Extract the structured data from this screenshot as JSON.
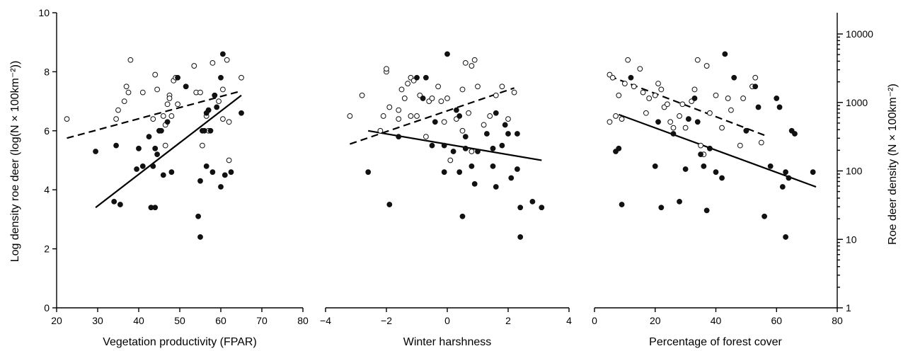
{
  "chart_data": [
    {
      "type": "scatter",
      "xlabel": "Vegetation productivity (FPAR)",
      "ylabel": "Log density roe deer (log(N × 100km⁻²))",
      "xlim": [
        20,
        80
      ],
      "ylim": [
        0,
        10
      ],
      "xticks": [
        20,
        30,
        40,
        50,
        60,
        70,
        80
      ],
      "yticks": [
        0,
        2,
        4,
        6,
        8,
        10
      ],
      "series": [
        {
          "marker": "open-circle",
          "points": [
            [
              22.5,
              6.4
            ],
            [
              34.5,
              6.4
            ],
            [
              35,
              6.7
            ],
            [
              36.5,
              7
            ],
            [
              37,
              7.5
            ],
            [
              37.5,
              7.3
            ],
            [
              38,
              8.4
            ],
            [
              41,
              7.3
            ],
            [
              43.5,
              6.4
            ],
            [
              44,
              7.9
            ],
            [
              44.5,
              7.4
            ],
            [
              45,
              6
            ],
            [
              46,
              6.5
            ],
            [
              46.5,
              5.5
            ],
            [
              46.5,
              6.2
            ],
            [
              47,
              6.9
            ],
            [
              47.5,
              7.2
            ],
            [
              47.5,
              7.1
            ],
            [
              48,
              6.5
            ],
            [
              48.5,
              7.7
            ],
            [
              49,
              7.8
            ],
            [
              49.5,
              6.9
            ],
            [
              51.5,
              7.5
            ],
            [
              53.5,
              8.2
            ],
            [
              54,
              7.3
            ],
            [
              55,
              7.3
            ],
            [
              55.5,
              5.5
            ],
            [
              56.5,
              6.5
            ],
            [
              57,
              6.7
            ],
            [
              57,
              6
            ],
            [
              58,
              8.3
            ],
            [
              58.5,
              7.2
            ],
            [
              59.5,
              7
            ],
            [
              60.5,
              7.4
            ],
            [
              60.5,
              6.4
            ],
            [
              61.5,
              8.4
            ],
            [
              62,
              6.3
            ],
            [
              62,
              5
            ],
            [
              65,
              7.8
            ]
          ]
        },
        {
          "marker": "filled-circle",
          "points": [
            [
              29.5,
              5.3
            ],
            [
              34,
              3.6
            ],
            [
              34.5,
              5.5
            ],
            [
              35.5,
              3.5
            ],
            [
              39.5,
              4.7
            ],
            [
              40,
              5.4
            ],
            [
              41,
              4.8
            ],
            [
              42.5,
              5.8
            ],
            [
              43,
              3.4
            ],
            [
              43.5,
              4.8
            ],
            [
              44,
              3.4
            ],
            [
              44,
              5.4
            ],
            [
              44.5,
              5.2
            ],
            [
              45,
              6
            ],
            [
              45.5,
              6
            ],
            [
              46,
              4.5
            ],
            [
              47,
              6.3
            ],
            [
              48,
              4.6
            ],
            [
              49.5,
              7.8
            ],
            [
              51.5,
              7.5
            ],
            [
              54.5,
              3.1
            ],
            [
              55,
              2.4
            ],
            [
              55,
              4.3
            ],
            [
              55.5,
              6
            ],
            [
              56,
              6
            ],
            [
              56.5,
              6.6
            ],
            [
              56.5,
              4.8
            ],
            [
              57,
              6.7
            ],
            [
              57.5,
              6
            ],
            [
              58,
              4.6
            ],
            [
              58.5,
              7.2
            ],
            [
              59,
              6.8
            ],
            [
              60,
              4.1
            ],
            [
              60,
              7.8
            ],
            [
              60.5,
              8.6
            ],
            [
              61,
              4.5
            ],
            [
              62.5,
              4.6
            ],
            [
              65,
              6.6
            ]
          ]
        }
      ],
      "trend_lines": [
        {
          "style": "dashed",
          "x": [
            22.5,
            65
          ],
          "y": [
            5.75,
            7.35
          ]
        },
        {
          "style": "solid",
          "x": [
            29.5,
            65
          ],
          "y": [
            3.4,
            7.2
          ]
        }
      ]
    },
    {
      "type": "scatter",
      "xlabel": "Winter harshness",
      "xlim": [
        -4,
        4
      ],
      "ylim": [
        0,
        10
      ],
      "xticks": [
        -4,
        -2,
        0,
        2,
        4
      ],
      "series": [
        {
          "marker": "open-circle",
          "points": [
            [
              -3.2,
              6.5
            ],
            [
              -2.8,
              7.2
            ],
            [
              -2.2,
              6
            ],
            [
              -2.1,
              6.5
            ],
            [
              -2,
              8
            ],
            [
              -2,
              8.1
            ],
            [
              -1.9,
              6.8
            ],
            [
              -1.6,
              6.4
            ],
            [
              -1.6,
              6.7
            ],
            [
              -1.5,
              7.4
            ],
            [
              -1.4,
              7.1
            ],
            [
              -1.3,
              7.6
            ],
            [
              -1.2,
              7.8
            ],
            [
              -1.2,
              6.5
            ],
            [
              -1.1,
              7.7
            ],
            [
              -1,
              6.5
            ],
            [
              -0.9,
              7.2
            ],
            [
              -0.7,
              5.8
            ],
            [
              -0.6,
              7
            ],
            [
              -0.5,
              7.1
            ],
            [
              -0.3,
              7.5
            ],
            [
              -0.2,
              7
            ],
            [
              -0.1,
              6.3
            ],
            [
              0,
              7.1
            ],
            [
              0.1,
              5
            ],
            [
              0.3,
              6.4
            ],
            [
              0.5,
              6
            ],
            [
              0.5,
              7.4
            ],
            [
              0.6,
              8.3
            ],
            [
              0.7,
              6.6
            ],
            [
              0.8,
              8.2
            ],
            [
              0.8,
              5.3
            ],
            [
              0.9,
              8.4
            ],
            [
              1,
              7.5
            ],
            [
              1.2,
              6.2
            ],
            [
              1.4,
              6.5
            ],
            [
              1.6,
              7.2
            ],
            [
              1.8,
              7.5
            ],
            [
              2,
              6.4
            ],
            [
              2.2,
              7.3
            ]
          ]
        },
        {
          "marker": "filled-circle",
          "points": [
            [
              -2.6,
              4.6
            ],
            [
              -1.9,
              3.5
            ],
            [
              -1.6,
              5.8
            ],
            [
              -1,
              7.8
            ],
            [
              -0.8,
              7.1
            ],
            [
              -0.7,
              7.8
            ],
            [
              -0.5,
              5.5
            ],
            [
              -0.4,
              6.3
            ],
            [
              -0.1,
              5.5
            ],
            [
              -0.1,
              4.6
            ],
            [
              0,
              8.6
            ],
            [
              0.2,
              5.3
            ],
            [
              0.3,
              6.7
            ],
            [
              0.4,
              6.5
            ],
            [
              0.4,
              4.6
            ],
            [
              0.5,
              3.1
            ],
            [
              0.6,
              5.4
            ],
            [
              0.6,
              5.8
            ],
            [
              0.8,
              4.8
            ],
            [
              0.9,
              4.2
            ],
            [
              1,
              5.3
            ],
            [
              1.3,
              5.9
            ],
            [
              1.5,
              5.4
            ],
            [
              1.5,
              4.8
            ],
            [
              1.6,
              4.1
            ],
            [
              1.6,
              6.6
            ],
            [
              1.8,
              5.5
            ],
            [
              1.9,
              6.2
            ],
            [
              2,
              5.9
            ],
            [
              2.1,
              4.4
            ],
            [
              2.3,
              4.7
            ],
            [
              2.3,
              5.9
            ],
            [
              2.4,
              3.4
            ],
            [
              2.4,
              2.4
            ],
            [
              2.8,
              3.6
            ],
            [
              3.1,
              3.4
            ]
          ]
        }
      ],
      "trend_lines": [
        {
          "style": "dashed",
          "x": [
            -3.2,
            2.2
          ],
          "y": [
            5.55,
            7.45
          ]
        },
        {
          "style": "solid",
          "x": [
            -2.6,
            3.1
          ],
          "y": [
            6,
            5
          ]
        }
      ]
    },
    {
      "type": "scatter",
      "xlabel": "Percentage of forest cover",
      "ylabel_right": "Roe deer density (N × 100km⁻²)",
      "xlim": [
        0,
        80
      ],
      "ylim": [
        0,
        10
      ],
      "xticks": [
        0,
        20,
        40,
        60,
        80
      ],
      "right_axis": {
        "scale": "log",
        "ticks": [
          1,
          10,
          100,
          1000,
          10000
        ]
      },
      "series": [
        {
          "marker": "open-circle",
          "points": [
            [
              5,
              7.9
            ],
            [
              5,
              6.3
            ],
            [
              6,
              7.8
            ],
            [
              7,
              6.5
            ],
            [
              8,
              7.2
            ],
            [
              9,
              6.4
            ],
            [
              10,
              7.6
            ],
            [
              11,
              8.4
            ],
            [
              13,
              7.5
            ],
            [
              15,
              8.1
            ],
            [
              16,
              7.3
            ],
            [
              17,
              6.6
            ],
            [
              18,
              7.1
            ],
            [
              20,
              7.2
            ],
            [
              21,
              7.6
            ],
            [
              22,
              7.4
            ],
            [
              23,
              6.8
            ],
            [
              24,
              6.9
            ],
            [
              25,
              6.3
            ],
            [
              26,
              6.1
            ],
            [
              28,
              6.5
            ],
            [
              29,
              6.9
            ],
            [
              30,
              6.1
            ],
            [
              31,
              6.4
            ],
            [
              32,
              7
            ],
            [
              33,
              7.4
            ],
            [
              34,
              8.4
            ],
            [
              35,
              5.5
            ],
            [
              36,
              5.2
            ],
            [
              37,
              8.2
            ],
            [
              38,
              6.6
            ],
            [
              40,
              7.2
            ],
            [
              42,
              6.1
            ],
            [
              44,
              7.1
            ],
            [
              45,
              6.7
            ],
            [
              48,
              5.5
            ],
            [
              49,
              7.1
            ],
            [
              50,
              6
            ],
            [
              52,
              7.5
            ],
            [
              53,
              7.8
            ],
            [
              55,
              5.6
            ]
          ]
        },
        {
          "marker": "filled-circle",
          "points": [
            [
              7,
              5.3
            ],
            [
              8,
              5.4
            ],
            [
              9,
              3.5
            ],
            [
              12,
              7.8
            ],
            [
              20,
              4.8
            ],
            [
              21,
              6.3
            ],
            [
              22,
              3.4
            ],
            [
              26,
              5.9
            ],
            [
              28,
              3.6
            ],
            [
              30,
              4.7
            ],
            [
              31,
              6.4
            ],
            [
              33,
              7.1
            ],
            [
              34,
              6.3
            ],
            [
              35,
              5.2
            ],
            [
              36,
              4.8
            ],
            [
              37,
              3.3
            ],
            [
              38,
              5.4
            ],
            [
              40,
              4.6
            ],
            [
              42,
              4.4
            ],
            [
              43,
              8.6
            ],
            [
              46,
              7.8
            ],
            [
              50,
              6
            ],
            [
              53,
              7.5
            ],
            [
              54,
              6.8
            ],
            [
              56,
              3.1
            ],
            [
              58,
              4.8
            ],
            [
              60,
              7.1
            ],
            [
              61,
              6.8
            ],
            [
              62,
              4.1
            ],
            [
              63,
              4.6
            ],
            [
              63,
              2.4
            ],
            [
              64,
              4.4
            ],
            [
              65,
              6
            ],
            [
              66,
              5.9
            ],
            [
              72,
              4.6
            ]
          ]
        }
      ],
      "trend_lines": [
        {
          "style": "dashed",
          "x": [
            5,
            56
          ],
          "y": [
            7.85,
            5.85
          ]
        },
        {
          "style": "solid",
          "x": [
            8,
            73
          ],
          "y": [
            6.55,
            4.1
          ]
        }
      ]
    }
  ]
}
